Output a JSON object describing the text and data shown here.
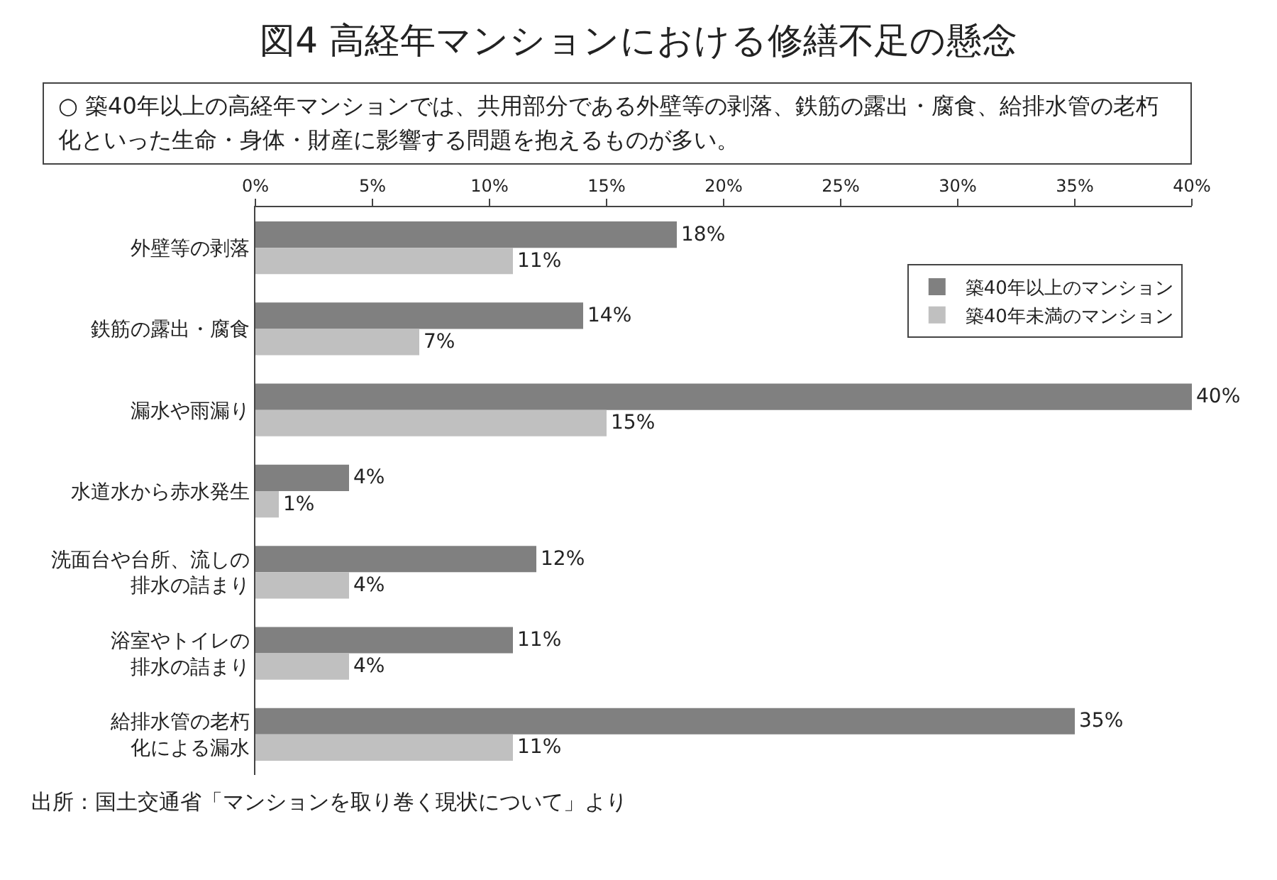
{
  "chart_data": {
    "type": "bar",
    "orientation": "horizontal",
    "title": "図4 高経年マンションにおける修繕不足の懸念",
    "subtitle": "○ 築40年以上の高経年マンションでは、共用部分である外壁等の剥落、鉄筋の露出・腐食、給排水管の老朽化といった生命・身体・財産に影響する問題を抱えるものが多い。",
    "categories": [
      "外壁等の剥落",
      "鉄筋の露出・腐食",
      "漏水や雨漏り",
      "水道水から赤水発生",
      "洗面台や台所、流しの排水の詰まり",
      "浴室やトイレの排水の詰まり",
      "給排水管の老朽化による漏水"
    ],
    "series": [
      {
        "name": "築40年以上のマンション",
        "color": "#808080",
        "values": [
          18,
          14,
          40,
          4,
          12,
          11,
          35
        ],
        "value_labels": [
          "18%",
          "14%",
          "40%",
          "4%",
          "12%",
          "11%",
          "35%"
        ]
      },
      {
        "name": "築40年未満のマンション",
        "color": "#c0c0c0",
        "values": [
          11,
          7,
          15,
          1,
          4,
          4,
          11
        ],
        "value_labels": [
          "11%",
          "7%",
          "15%",
          "1%",
          "4%",
          "4%",
          "11%"
        ]
      }
    ],
    "xlim": [
      0,
      40
    ],
    "xticks": [
      {
        "value": 0,
        "label": "0%"
      },
      {
        "value": 5,
        "label": "5%"
      },
      {
        "value": 10,
        "label": "10%"
      },
      {
        "value": 15,
        "label": "15%"
      },
      {
        "value": 20,
        "label": "20%"
      },
      {
        "value": 25,
        "label": "25%"
      },
      {
        "value": 30,
        "label": "30%"
      },
      {
        "value": 35,
        "label": "35%"
      },
      {
        "value": 40,
        "label": "40%"
      }
    ],
    "grid": false,
    "legend": "top right",
    "annotations": [
      "出所：国土交通省「マンションを取り巻く現状について」より"
    ]
  }
}
